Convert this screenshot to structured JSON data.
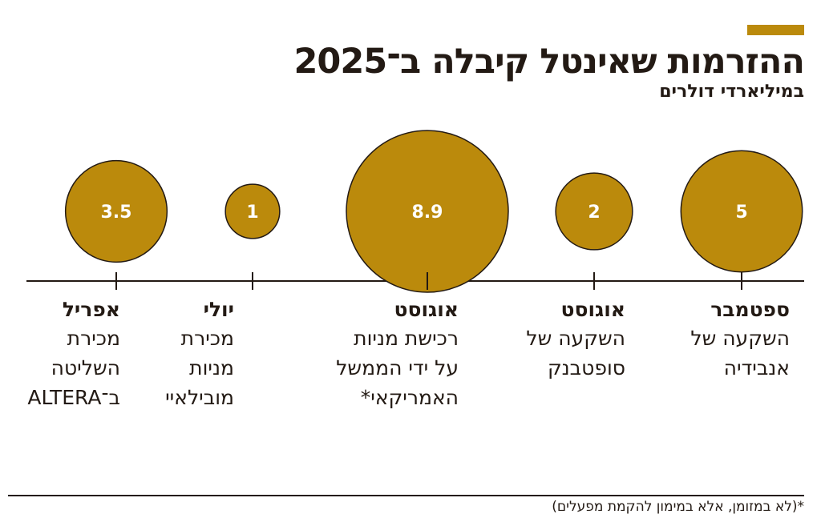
{
  "chart_data": {
    "type": "bubble",
    "title": "ההזרמות שאינטל קיבלה ב־2025",
    "subtitle": "במיליארדי דולרים",
    "direction": "right-to-left",
    "items": [
      {
        "month": "ספטמבר",
        "value": 5,
        "label": "5",
        "description": [
          "השקעה של",
          "אנבידיה"
        ]
      },
      {
        "month": "אוגוסט",
        "value": 2,
        "label": "2",
        "description": [
          "השקעה של",
          "סופטבנק"
        ]
      },
      {
        "month": "אוגוסט",
        "value": 8.9,
        "label": "8.9",
        "description": [
          "רכישת מניות",
          "על ידי הממשל",
          "האמריקאי*"
        ]
      },
      {
        "month": "יולי",
        "value": 1,
        "label": "1",
        "description": [
          "מכירת",
          "מניות",
          "מובילאיי"
        ]
      },
      {
        "month": "אפריל",
        "value": 3.5,
        "label": "3.5",
        "description": [
          "מכירת",
          "השליטה",
          "ב־ALTERA"
        ]
      }
    ],
    "footnote": "*(לא במזומן, אלא במימון להקמת מפעלים)",
    "colors": {
      "bubble": "#bb8a0c",
      "text": "#231a14",
      "bubble_label": "#ffffff"
    }
  }
}
